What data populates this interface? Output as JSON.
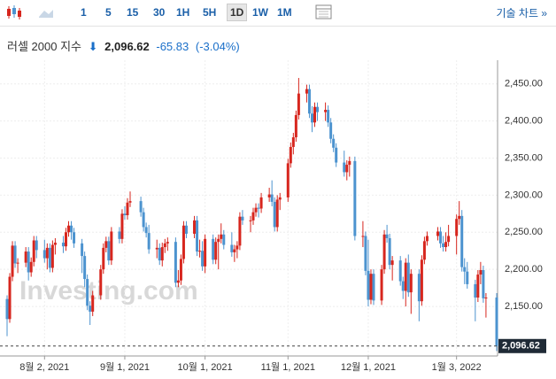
{
  "toolbar": {
    "intervals": [
      "1",
      "5",
      "15",
      "30",
      "1H",
      "5H",
      "1D",
      "1W",
      "1M"
    ],
    "active": "1D",
    "tech_chart": "기술 차트 »"
  },
  "header": {
    "title": "러셀 2000 지수",
    "price": "2,096.62",
    "change": "-65.83",
    "change_pct": "(-3.04%)"
  },
  "chart_data": {
    "type": "candlestick",
    "watermark": "Investing.com",
    "up_color": "#d7261e",
    "down_color": "#4c93cf",
    "grid": true,
    "x": [
      "2021-07-19",
      "2021-07-20",
      "2021-07-21",
      "2021-07-22",
      "2021-07-23",
      "2021-07-26",
      "2021-07-27",
      "2021-07-28",
      "2021-07-29",
      "2021-07-30",
      "2021-08-02",
      "2021-08-03",
      "2021-08-04",
      "2021-08-05",
      "2021-08-06",
      "2021-08-09",
      "2021-08-10",
      "2021-08-11",
      "2021-08-12",
      "2021-08-13",
      "2021-08-16",
      "2021-08-17",
      "2021-08-18",
      "2021-08-19",
      "2021-08-20",
      "2021-08-23",
      "2021-08-24",
      "2021-08-25",
      "2021-08-26",
      "2021-08-27",
      "2021-08-30",
      "2021-08-31",
      "2021-09-01",
      "2021-09-02",
      "2021-09-03",
      "2021-09-07",
      "2021-09-08",
      "2021-09-09",
      "2021-09-10",
      "2021-09-13",
      "2021-09-14",
      "2021-09-15",
      "2021-09-16",
      "2021-09-17",
      "2021-09-20",
      "2021-09-21",
      "2021-09-22",
      "2021-09-23",
      "2021-09-24",
      "2021-09-27",
      "2021-09-28",
      "2021-09-29",
      "2021-09-30",
      "2021-10-01",
      "2021-10-04",
      "2021-10-05",
      "2021-10-06",
      "2021-10-07",
      "2021-10-08",
      "2021-10-11",
      "2021-10-12",
      "2021-10-13",
      "2021-10-14",
      "2021-10-15",
      "2021-10-18",
      "2021-10-19",
      "2021-10-20",
      "2021-10-21",
      "2021-10-22",
      "2021-10-25",
      "2021-10-26",
      "2021-10-27",
      "2021-10-28",
      "2021-10-29",
      "2021-11-01",
      "2021-11-02",
      "2021-11-03",
      "2021-11-04",
      "2021-11-05",
      "2021-11-08",
      "2021-11-09",
      "2021-11-10",
      "2021-11-11",
      "2021-11-12",
      "2021-11-15",
      "2021-11-16",
      "2021-11-17",
      "2021-11-18",
      "2021-11-19",
      "2021-11-22",
      "2021-11-23",
      "2021-11-24",
      "2021-11-26",
      "2021-11-29",
      "2021-11-30",
      "2021-12-01",
      "2021-12-02",
      "2021-12-03",
      "2021-12-06",
      "2021-12-07",
      "2021-12-08",
      "2021-12-09",
      "2021-12-10",
      "2021-12-13",
      "2021-12-14",
      "2021-12-15",
      "2021-12-16",
      "2021-12-17",
      "2021-12-20",
      "2021-12-21",
      "2021-12-22",
      "2021-12-23",
      "2021-12-27",
      "2021-12-28",
      "2021-12-29",
      "2021-12-30",
      "2021-12-31",
      "2022-01-03",
      "2022-01-04",
      "2022-01-05",
      "2022-01-06",
      "2022-01-07",
      "2022-01-10",
      "2022-01-11",
      "2022-01-12",
      "2022-01-13",
      "2022-01-14",
      "2022-01-18"
    ],
    "open": [
      2160,
      2133,
      2190,
      2232,
      2208,
      2209,
      2224,
      2196,
      2210,
      2239,
      2226,
      2215,
      2229,
      2202,
      2233,
      2236,
      2231,
      2250,
      2259,
      2250,
      2235,
      2218,
      2187,
      2151,
      2143,
      2165,
      2200,
      2229,
      2238,
      2212,
      2251,
      2241,
      2275,
      2273,
      2290,
      2292,
      2277,
      2257,
      2249,
      2227,
      2229,
      2212,
      2230,
      2235,
      2237,
      2182,
      2185,
      2214,
      2259,
      2248,
      2266,
      2224,
      2225,
      2204,
      2241,
      2213,
      2237,
      2241,
      2247,
      2233,
      2223,
      2227,
      2232,
      2271,
      2266,
      2266,
      2277,
      2283,
      2282,
      2297,
      2301,
      2291,
      2257,
      2294,
      2297,
      2343,
      2365,
      2378,
      2408,
      2437,
      2443,
      2410,
      2398,
      2419,
      2412,
      2415,
      2398,
      2376,
      2364,
      2344,
      2331,
      2341,
      2346,
      2245,
      2245,
      2198,
      2159,
      2194,
      2158,
      2200,
      2247,
      2242,
      2206,
      2212,
      2184,
      2171,
      2209,
      2169,
      2194,
      2157,
      2213,
      2238,
      2245,
      2251,
      2235,
      2230,
      2237,
      2245,
      2268,
      2272,
      2203,
      2197,
      2180,
      2162,
      2193,
      2199,
      2161,
      2162
    ],
    "high": [
      2165,
      2195,
      2238,
      2238,
      2215,
      2230,
      2230,
      2216,
      2245,
      2245,
      2240,
      2235,
      2235,
      2239,
      2242,
      2245,
      2256,
      2265,
      2265,
      2256,
      2241,
      2224,
      2193,
      2157,
      2171,
      2206,
      2235,
      2244,
      2244,
      2257,
      2257,
      2281,
      2285,
      2296,
      2305,
      2298,
      2283,
      2263,
      2260,
      2240,
      2235,
      2236,
      2241,
      2243,
      2243,
      2199,
      2220,
      2265,
      2265,
      2272,
      2272,
      2240,
      2238,
      2247,
      2247,
      2243,
      2247,
      2262,
      2253,
      2250,
      2233,
      2238,
      2277,
      2280,
      2272,
      2283,
      2289,
      2289,
      2303,
      2310,
      2320,
      2297,
      2300,
      2303,
      2349,
      2371,
      2384,
      2414,
      2458,
      2449,
      2449,
      2420,
      2425,
      2425,
      2425,
      2421,
      2404,
      2382,
      2370,
      2360,
      2347,
      2352,
      2352,
      2265,
      2251,
      2240,
      2200,
      2200,
      2206,
      2253,
      2260,
      2248,
      2218,
      2218,
      2190,
      2215,
      2220,
      2200,
      2200,
      2219,
      2244,
      2251,
      2257,
      2257,
      2245,
      2250,
      2260,
      2274,
      2292,
      2280,
      2215,
      2210,
      2186,
      2199,
      2210,
      2205,
      2168,
      2168
    ],
    "low": [
      2110,
      2128,
      2184,
      2202,
      2195,
      2203,
      2185,
      2190,
      2204,
      2215,
      2209,
      2200,
      2196,
      2196,
      2220,
      2222,
      2225,
      2244,
      2240,
      2229,
      2195,
      2176,
      2145,
      2125,
      2137,
      2159,
      2194,
      2223,
      2206,
      2206,
      2235,
      2235,
      2267,
      2267,
      2284,
      2271,
      2251,
      2243,
      2221,
      2215,
      2206,
      2204,
      2222,
      2225,
      2176,
      2176,
      2179,
      2208,
      2242,
      2242,
      2218,
      2216,
      2198,
      2195,
      2207,
      2207,
      2200,
      2235,
      2227,
      2217,
      2210,
      2215,
      2226,
      2260,
      2250,
      2260,
      2271,
      2270,
      2276,
      2291,
      2285,
      2251,
      2251,
      2280,
      2291,
      2337,
      2355,
      2372,
      2402,
      2425,
      2404,
      2385,
      2392,
      2400,
      2400,
      2392,
      2370,
      2358,
      2338,
      2325,
      2320,
      2325,
      2239,
      2230,
      2192,
      2150,
      2153,
      2152,
      2152,
      2194,
      2236,
      2200,
      2185,
      2178,
      2160,
      2150,
      2163,
      2140,
      2130,
      2151,
      2207,
      2232,
      2239,
      2229,
      2224,
      2224,
      2231,
      2220,
      2260,
      2197,
      2180,
      2174,
      2130,
      2156,
      2180,
      2155,
      2135,
      2090
    ],
    "close": [
      2133,
      2190,
      2232,
      2208,
      2209,
      2224,
      2196,
      2210,
      2239,
      2226,
      2215,
      2229,
      2202,
      2233,
      2236,
      2231,
      2250,
      2259,
      2250,
      2235,
      2218,
      2187,
      2151,
      2143,
      2165,
      2200,
      2229,
      2238,
      2212,
      2251,
      2241,
      2275,
      2273,
      2290,
      2292,
      2277,
      2257,
      2249,
      2227,
      2229,
      2212,
      2230,
      2235,
      2237,
      2182,
      2185,
      2214,
      2259,
      2248,
      2266,
      2224,
      2225,
      2204,
      2241,
      2213,
      2237,
      2241,
      2247,
      2233,
      2223,
      2227,
      2232,
      2271,
      2266,
      2266,
      2277,
      2283,
      2282,
      2297,
      2301,
      2291,
      2257,
      2294,
      2297,
      2343,
      2365,
      2378,
      2408,
      2437,
      2443,
      2410,
      2398,
      2419,
      2412,
      2415,
      2398,
      2376,
      2364,
      2344,
      2331,
      2341,
      2346,
      2245,
      2245,
      2198,
      2159,
      2194,
      2158,
      2200,
      2247,
      2242,
      2206,
      2212,
      2184,
      2171,
      2209,
      2169,
      2194,
      2157,
      2213,
      2238,
      2245,
      2251,
      2235,
      2230,
      2237,
      2245,
      2268,
      2272,
      2203,
      2197,
      2180,
      2162,
      2193,
      2199,
      2161,
      2162,
      2096.62
    ],
    "ylim": [
      2088,
      2470
    ],
    "yticks": [
      {
        "value": 2150,
        "label": "2,150.00"
      },
      {
        "value": 2200,
        "label": "2,200.00"
      },
      {
        "value": 2250,
        "label": "2,250.00"
      },
      {
        "value": 2300,
        "label": "2,300.00"
      },
      {
        "value": 2350,
        "label": "2,350.00"
      },
      {
        "value": 2400,
        "label": "2,400.00"
      },
      {
        "value": 2450,
        "label": "2,450.00"
      }
    ],
    "xticks": [
      {
        "value": "2021-08-02",
        "label": "8월 2, 2021"
      },
      {
        "value": "2021-09-01",
        "label": "9월 1, 2021"
      },
      {
        "value": "2021-10-01",
        "label": "10월 1, 2021"
      },
      {
        "value": "2021-11-01",
        "label": "11월 1, 2021"
      },
      {
        "value": "2021-12-01",
        "label": "12월 1, 2021"
      },
      {
        "value": "2022-01-03",
        "label": "1월 3, 2022"
      }
    ]
  }
}
